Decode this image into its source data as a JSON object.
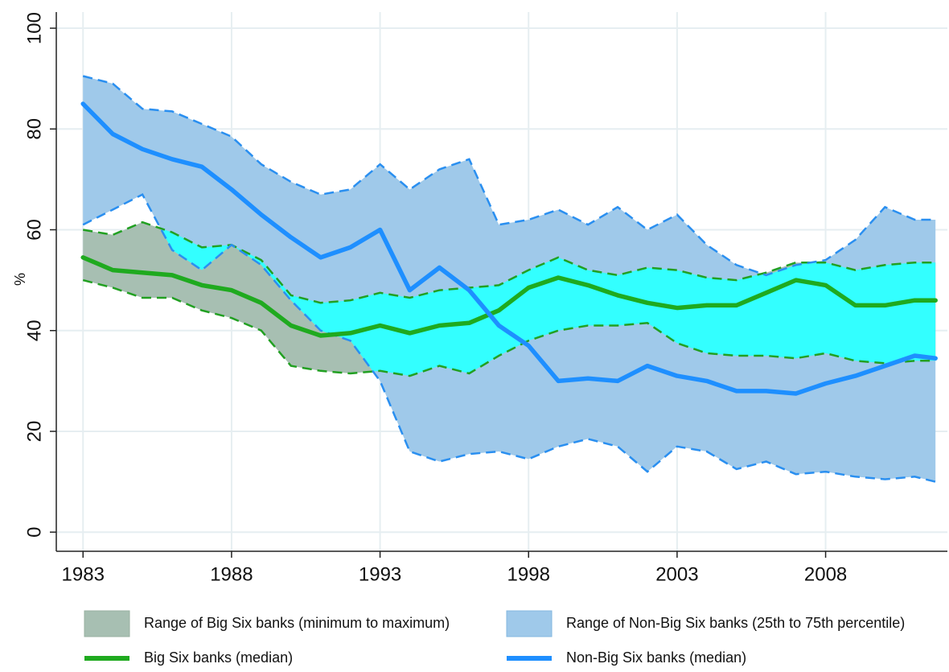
{
  "chart_data": {
    "type": "band_line",
    "y_label": "%",
    "x": [
      1983,
      1984,
      1985,
      1986,
      1987,
      1988,
      1989,
      1990,
      1991,
      1992,
      1993,
      1994,
      1995,
      1996,
      1997,
      1998,
      1999,
      2000,
      2001,
      2002,
      2003,
      2004,
      2005,
      2006,
      2007,
      2008,
      2009,
      2010,
      2011,
      2011.7
    ],
    "bands": [
      {
        "name": "Range of Big Six banks (minimum to maximum)",
        "color": "#a7bfb2",
        "edge_color": "#22a022",
        "lower": [
          50,
          48.5,
          46.5,
          46.5,
          44,
          42.5,
          40,
          33,
          32,
          31.5,
          32,
          31,
          33,
          31.5,
          35,
          38,
          40,
          41,
          41,
          41.5,
          37.5,
          35.5,
          35,
          35,
          34.5,
          35.5,
          34,
          33.5,
          34,
          34
        ],
        "upper": [
          60,
          59,
          61.5,
          59.5,
          56.5,
          57,
          54,
          47,
          45.5,
          46,
          47.5,
          46.5,
          48,
          48.5,
          49,
          52,
          54.5,
          52,
          51,
          52.5,
          52,
          50.5,
          50,
          51.5,
          53.5,
          53.5,
          52,
          53,
          53.5,
          53.5
        ]
      },
      {
        "name": "Range of Non-Big Six banks (25th to 75th percentile)",
        "color": "#9fc9ea",
        "edge_color": "#2a8ff0",
        "lower": [
          61,
          64,
          67,
          56,
          52,
          57,
          53,
          46,
          40,
          38,
          30,
          16,
          14,
          15.5,
          16,
          14.5,
          17,
          18.5,
          17,
          12,
          17,
          16,
          12.5,
          14,
          11.5,
          12,
          11,
          10.5,
          11,
          10
        ],
        "upper": [
          90.5,
          89,
          84,
          83.5,
          81,
          78.5,
          73,
          69.5,
          67,
          68,
          73,
          68,
          72,
          74,
          61,
          62,
          64,
          61,
          64.5,
          60,
          63,
          57,
          53,
          51,
          53,
          54,
          58,
          64.5,
          62,
          62
        ]
      }
    ],
    "overlap_color": "#33ffff",
    "series": [
      {
        "name": "Big Six banks (median)",
        "color": "#1faa1f",
        "values": [
          54.5,
          52,
          51.5,
          51,
          49,
          48,
          45.5,
          41,
          39,
          39.5,
          41,
          39.5,
          41,
          41.5,
          44,
          48.5,
          50.5,
          49,
          47,
          45.5,
          44.5,
          45,
          45,
          47.5,
          50,
          49,
          45,
          45,
          46,
          46
        ]
      },
      {
        "name": "Non-Big Six banks (median)",
        "color": "#1e8fff",
        "values": [
          85,
          79,
          76,
          74,
          72.5,
          68,
          63,
          58.5,
          54.5,
          56.5,
          60,
          48,
          52.5,
          48,
          41,
          37,
          30,
          30.5,
          30,
          33,
          31,
          30,
          28,
          28,
          27.5,
          29.5,
          31,
          33,
          35,
          34.5
        ]
      }
    ],
    "xlim": [
      1982.1,
      2012.1
    ],
    "ylim": [
      -3.8,
      103.2
    ],
    "xticks": [
      1983,
      1988,
      1993,
      1998,
      2003,
      2008
    ],
    "yticks": [
      0,
      20,
      40,
      60,
      80,
      100
    ],
    "grid": true
  }
}
